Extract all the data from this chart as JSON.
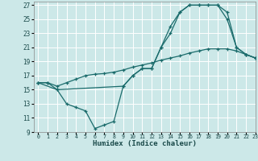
{
  "xlabel": "Humidex (Indice chaleur)",
  "bg_color": "#cce8e8",
  "grid_color": "#b0d8d8",
  "line_color": "#1a6b6b",
  "xlim": [
    -0.5,
    23
  ],
  "ylim": [
    9,
    27.5
  ],
  "xticks": [
    0,
    1,
    2,
    3,
    4,
    5,
    6,
    7,
    8,
    9,
    10,
    11,
    12,
    13,
    14,
    15,
    16,
    17,
    18,
    19,
    20,
    21,
    22,
    23
  ],
  "yticks": [
    9,
    11,
    13,
    15,
    17,
    19,
    21,
    23,
    25,
    27
  ],
  "line1_x": [
    0,
    1,
    2,
    3,
    4,
    5,
    6,
    7,
    8,
    9,
    10,
    11,
    12,
    13,
    14,
    15,
    16,
    17,
    18,
    19,
    20,
    21,
    22,
    23
  ],
  "line1_y": [
    16,
    16,
    15,
    13,
    12.5,
    12,
    9.5,
    10,
    10.5,
    15.5,
    17,
    18,
    18,
    21,
    23,
    26,
    27,
    27,
    27,
    27,
    26,
    21,
    20,
    19.5
  ],
  "line2_x": [
    0,
    2,
    9,
    10,
    11,
    12,
    13,
    14,
    15,
    16,
    17,
    18,
    19,
    20,
    21,
    22,
    23
  ],
  "line2_y": [
    16,
    15,
    15.5,
    17,
    18,
    18,
    21,
    24,
    26,
    27,
    27,
    27,
    27,
    25,
    21,
    20,
    19.5
  ],
  "line3_x": [
    0,
    1,
    2,
    3,
    4,
    5,
    6,
    7,
    8,
    9,
    10,
    11,
    12,
    13,
    14,
    15,
    16,
    17,
    18,
    19,
    20,
    21,
    22,
    23
  ],
  "line3_y": [
    16,
    16,
    15.5,
    16,
    16.5,
    17,
    17.2,
    17.3,
    17.5,
    17.8,
    18.2,
    18.5,
    18.8,
    19.2,
    19.5,
    19.8,
    20.2,
    20.5,
    20.8,
    20.8,
    20.8,
    20.5,
    20,
    19.5
  ]
}
